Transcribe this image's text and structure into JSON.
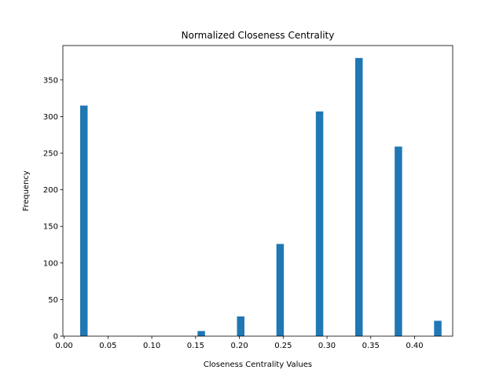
{
  "chart_data": {
    "type": "bar",
    "title": "Normalized Closeness Centrality",
    "xlabel": "Closeness Centrality Values",
    "ylabel": "Frequency",
    "xlim": [
      -0.0015,
      0.4435
    ],
    "ylim": [
      0,
      397
    ],
    "bar_width": 0.0085,
    "bar_color": "#1f77b4",
    "x": [
      0.0225,
      0.1565,
      0.2015,
      0.2465,
      0.2915,
      0.3365,
      0.3815,
      0.4265
    ],
    "values": [
      315,
      7,
      27,
      126,
      307,
      380,
      259,
      21
    ],
    "xticks": [
      0.0,
      0.05,
      0.1,
      0.15,
      0.2,
      0.25,
      0.3,
      0.35,
      0.4
    ],
    "xtick_labels": [
      "0.00",
      "0.05",
      "0.10",
      "0.15",
      "0.20",
      "0.25",
      "0.30",
      "0.35",
      "0.40"
    ],
    "yticks": [
      0,
      50,
      100,
      150,
      200,
      250,
      300,
      350
    ],
    "ytick_labels": [
      "0",
      "50",
      "100",
      "150",
      "200",
      "250",
      "300",
      "350"
    ],
    "grid": false,
    "legend": "none"
  }
}
